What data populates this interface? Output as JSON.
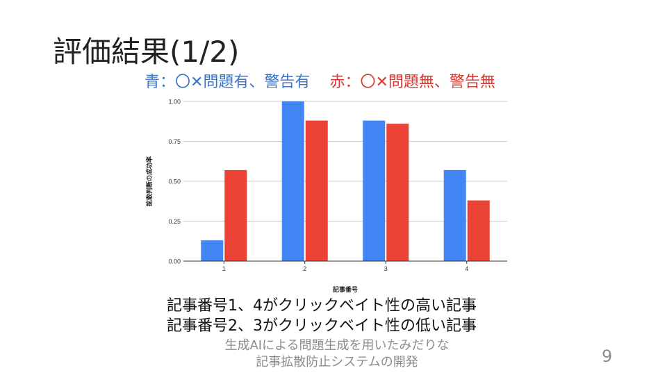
{
  "slide": {
    "title": "評価結果(1/2)",
    "legend_blue": "青：〇✕問題有、警告有",
    "legend_red": "赤：〇✕問題無、警告無",
    "summary_line1": "記事番号1、4がクリックベイト性の高い記事",
    "summary_line2": "記事番号2、3がクリックベイト性の低い記事",
    "footer_line1": "生成AIによる問題生成を用いたみだりな",
    "footer_line2": "記事拡散防止システムの開発",
    "page_number": "9"
  },
  "colors": {
    "blue": "#4285f4",
    "red": "#ea4335",
    "grid": "#cccccc",
    "axis": "#333333"
  },
  "chart_data": {
    "type": "bar",
    "categories": [
      "1",
      "2",
      "3",
      "4"
    ],
    "series": [
      {
        "color": "#4285f4",
        "values": [
          0.13,
          1.0,
          0.88,
          0.57
        ]
      },
      {
        "color": "#ea4335",
        "values": [
          0.57,
          0.88,
          0.86,
          0.38
        ]
      }
    ],
    "title": "",
    "xlabel": "記事番号",
    "ylabel": "拡散判断の成功率",
    "ylim": [
      0,
      1
    ],
    "yticks": [
      "0.00",
      "0.25",
      "0.50",
      "0.75",
      "1.00"
    ],
    "grid": true
  }
}
